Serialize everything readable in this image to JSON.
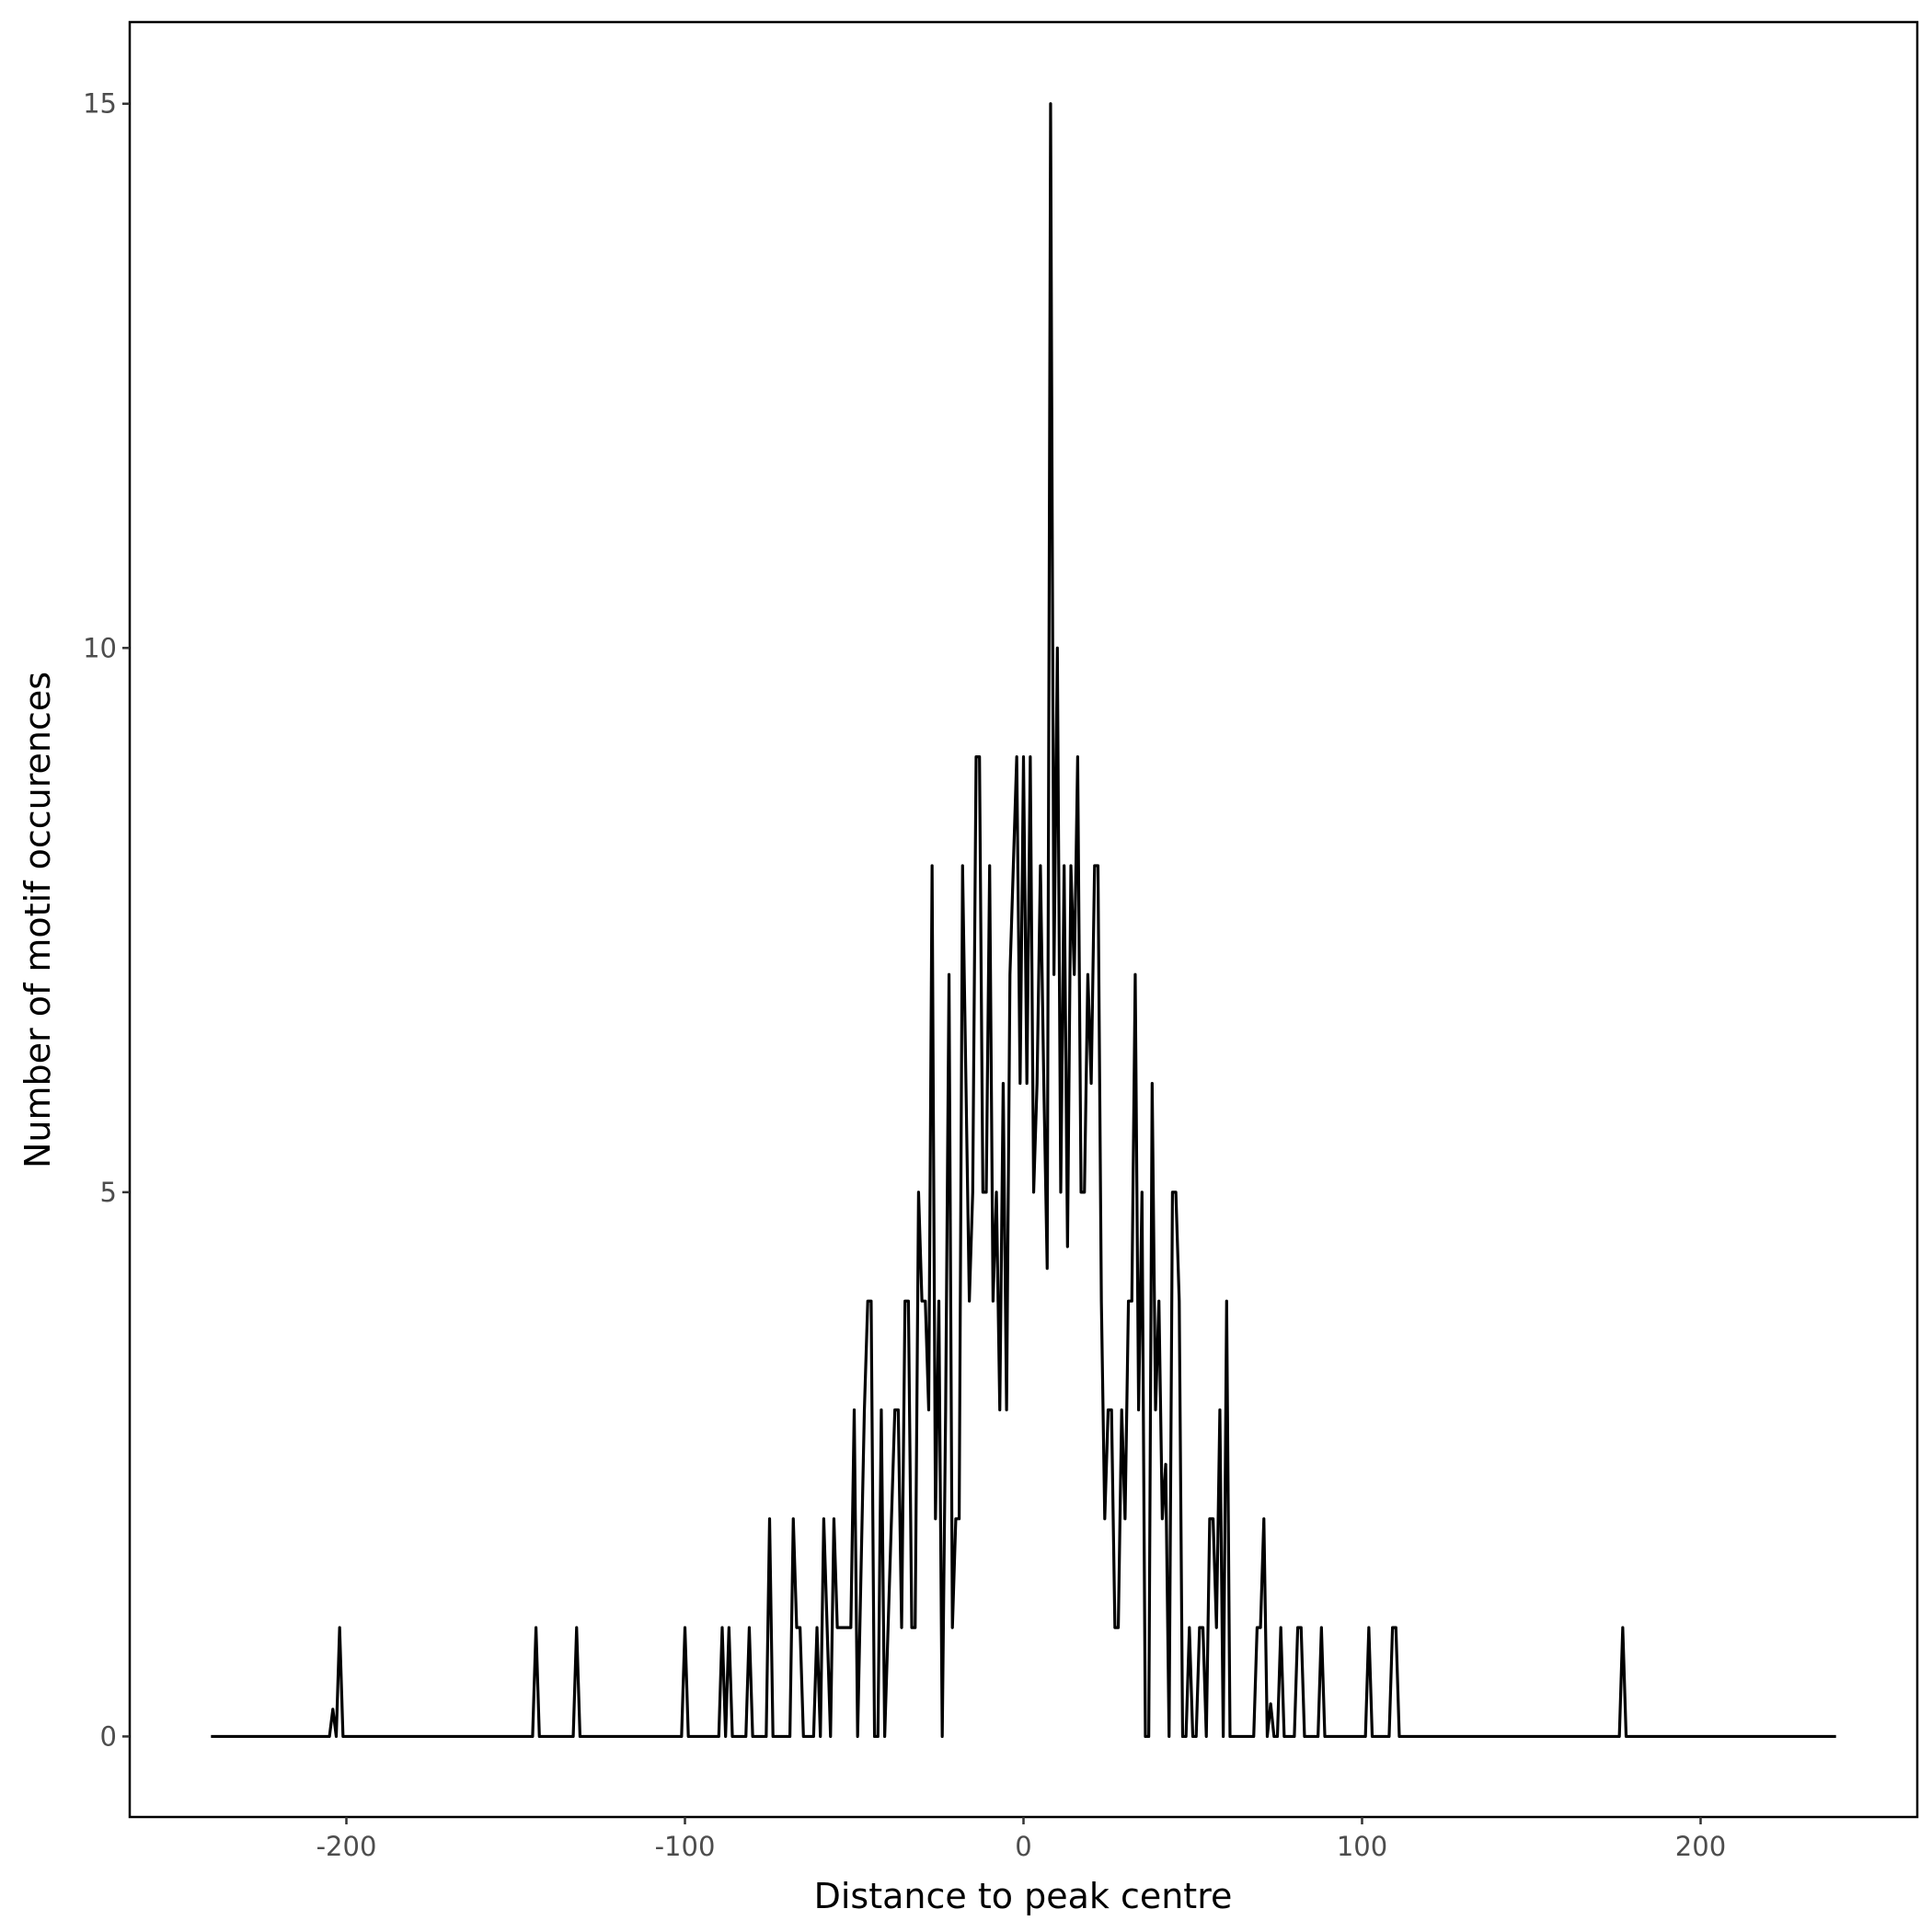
{
  "chart_data": {
    "type": "line",
    "x_label": "Distance to peak centre",
    "y_label": "Number of motif occurences",
    "color": "#000000",
    "xlim": [
      -264,
      264
    ],
    "ylim": [
      -0.74,
      15.75
    ],
    "xticks": [
      -200,
      -100,
      0,
      100,
      200
    ],
    "yticks": [
      0,
      5,
      10,
      15
    ],
    "x": [
      -240,
      -205,
      -204,
      -203,
      -202,
      -201,
      -145,
      -144,
      -143,
      -133,
      -132,
      -131,
      -101,
      -100,
      -99,
      -90,
      -89,
      -88,
      -87,
      -86,
      -82,
      -81,
      -80,
      -76,
      -75,
      -74,
      -69,
      -68,
      -67,
      -66,
      -65,
      -62,
      -61,
      -60,
      -59,
      -58,
      -57,
      -56,
      -55,
      -51,
      -50,
      -49,
      -47,
      -46,
      -45,
      -44,
      -43,
      -42,
      -41,
      -39,
      -38,
      -37,
      -36,
      -35,
      -34,
      -33,
      -32,
      -31,
      -30,
      -29,
      -28,
      -27,
      -26,
      -25,
      -24,
      -23,
      -22,
      -21,
      -20,
      -19,
      -18,
      -17,
      -16,
      -15,
      -14,
      -13,
      -12,
      -11,
      -10,
      -9,
      -8,
      -7,
      -6,
      -5,
      -4,
      -3,
      -2,
      -1,
      0,
      1,
      2,
      3,
      4,
      5,
      6,
      7,
      8,
      9,
      10,
      11,
      12,
      13,
      14,
      15,
      16,
      17,
      18,
      19,
      20,
      21,
      22,
      23,
      24,
      25,
      26,
      27,
      28,
      29,
      30,
      31,
      32,
      33,
      34,
      35,
      36,
      37,
      38,
      39,
      40,
      41,
      42,
      43,
      44,
      45,
      46,
      47,
      48,
      49,
      50,
      51,
      52,
      53,
      54,
      55,
      56,
      57,
      58,
      59,
      60,
      61,
      68,
      69,
      70,
      71,
      72,
      73,
      74,
      75,
      76,
      77,
      80,
      81,
      82,
      83,
      87,
      88,
      89,
      101,
      102,
      103,
      108,
      109,
      110,
      111,
      176,
      177,
      178,
      240
    ],
    "values": [
      0,
      0,
      0.25,
      0,
      1,
      0,
      0,
      1,
      0,
      0,
      1,
      0,
      0,
      1,
      0,
      0,
      1,
      0,
      1,
      0,
      0,
      1,
      0,
      0,
      2,
      0,
      0,
      2,
      1,
      1,
      0,
      0,
      1,
      0,
      2,
      1,
      0,
      2,
      1,
      1,
      3,
      0,
      3,
      4,
      4,
      0,
      0,
      3,
      0,
      2,
      3,
      3,
      1,
      4,
      4,
      1,
      1,
      5,
      4,
      4,
      3,
      8,
      2,
      4,
      0,
      3,
      7,
      1,
      2,
      2,
      8,
      6,
      4,
      5,
      9,
      9,
      5,
      5,
      8,
      4,
      5,
      3,
      6,
      3,
      7,
      8,
      9,
      6,
      9,
      6,
      9,
      5,
      6,
      8,
      6,
      4.3,
      15,
      7,
      10,
      5,
      8,
      4.5,
      8,
      7,
      9,
      5,
      5,
      7,
      6,
      8,
      8,
      4,
      2,
      3,
      3,
      1,
      1,
      3,
      2,
      4,
      4,
      7,
      3,
      5,
      0,
      0,
      6,
      3,
      4,
      2,
      2.5,
      0,
      5,
      5,
      4,
      0,
      0,
      1,
      0,
      0,
      1,
      1,
      0,
      2,
      2,
      1,
      3,
      0,
      4,
      0,
      0,
      1,
      1,
      2,
      0,
      0.3,
      0,
      0,
      1,
      0,
      0,
      1,
      1,
      0,
      0,
      1,
      0,
      0,
      1,
      0,
      0,
      1,
      1,
      0,
      0,
      1,
      0,
      0
    ]
  }
}
